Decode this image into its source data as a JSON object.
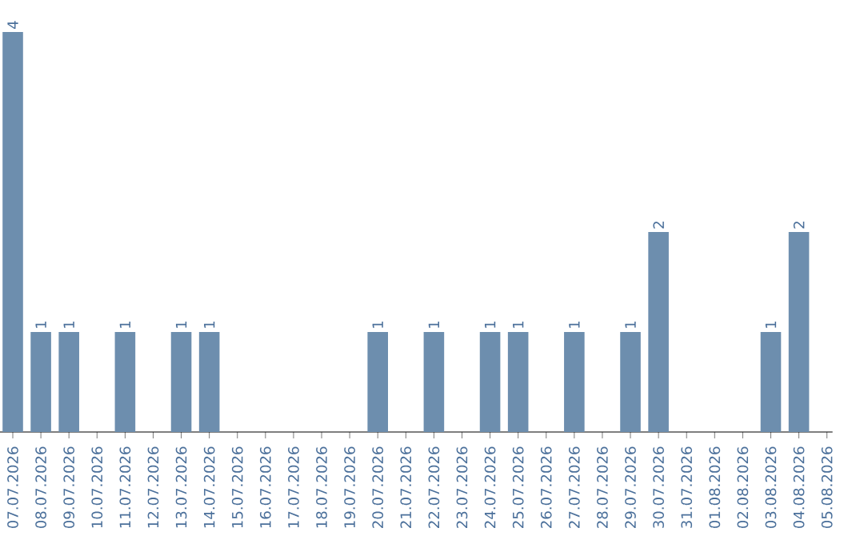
{
  "chart_data": {
    "type": "bar",
    "categories": [
      "07.07.2026",
      "08.07.2026",
      "09.07.2026",
      "10.07.2026",
      "11.07.2026",
      "12.07.2026",
      "13.07.2026",
      "14.07.2026",
      "15.07.2026",
      "16.07.2026",
      "17.07.2026",
      "18.07.2026",
      "19.07.2026",
      "20.07.2026",
      "21.07.2026",
      "22.07.2026",
      "23.07.2026",
      "24.07.2026",
      "25.07.2026",
      "26.07.2026",
      "27.07.2026",
      "28.07.2026",
      "29.07.2026",
      "30.07.2026",
      "31.07.2026",
      "01.08.2026",
      "02.08.2026",
      "03.08.2026",
      "04.08.2026",
      "05.08.2026"
    ],
    "values": [
      4,
      1,
      1,
      0,
      1,
      0,
      1,
      1,
      0,
      0,
      0,
      0,
      0,
      1,
      0,
      1,
      0,
      1,
      1,
      0,
      1,
      0,
      1,
      2,
      0,
      0,
      0,
      1,
      2,
      0
    ],
    "value_labels": [
      "4",
      "1",
      "1",
      null,
      "1",
      null,
      "1",
      "1",
      null,
      null,
      null,
      null,
      null,
      "1",
      null,
      "1",
      null,
      "1",
      "1",
      null,
      "1",
      null,
      "1",
      "2",
      null,
      null,
      null,
      "1",
      "2",
      null
    ],
    "color": "#6d8eae",
    "tick_labels": "x"
  }
}
